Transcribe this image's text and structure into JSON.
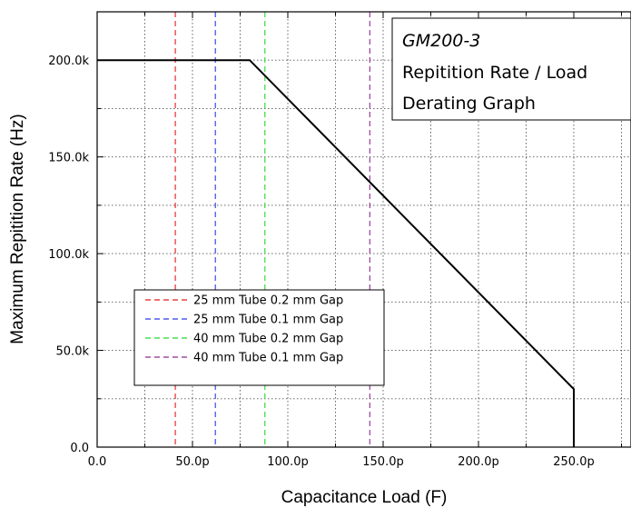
{
  "chart_data": {
    "type": "line",
    "title": "",
    "xlabel": "Capacitance Load (F)",
    "ylabel": "Maximum Repitition Rate (Hz)",
    "xlim": [
      0,
      280
    ],
    "ylim": [
      0,
      225000
    ],
    "x_ticks": [
      0,
      50,
      100,
      150,
      200,
      250
    ],
    "x_tick_labels": [
      "0.0",
      "50.0p",
      "100.0p",
      "150.0p",
      "200.0p",
      "250.0p"
    ],
    "y_ticks": [
      0,
      50000,
      100000,
      150000,
      200000
    ],
    "y_tick_labels": [
      "0.0",
      "50.0k",
      "100.0k",
      "150.0k",
      "200.0k"
    ],
    "grid": true,
    "derating_curve": {
      "x": [
        0,
        80,
        250,
        250
      ],
      "y": [
        200000,
        200000,
        30000,
        0
      ],
      "color": "#000000"
    },
    "vertical_lines": [
      {
        "name": "25 mm Tube 0.2 mm Gap",
        "x": 41,
        "color": "#e8191d"
      },
      {
        "name": "25 mm Tube 0.1 mm Gap",
        "x": 62,
        "color": "#2a3ae6"
      },
      {
        "name": "40 mm Tube 0.2 mm Gap",
        "x": 88,
        "color": "#22d628"
      },
      {
        "name": "40 mm Tube 0.1 mm Gap",
        "x": 143,
        "color": "#8c2a8c"
      }
    ],
    "legend_position": "lower-left",
    "annotation": {
      "line1": "GM200-3",
      "line2": "Repitition Rate / Load",
      "line3": "Derating Graph"
    }
  }
}
